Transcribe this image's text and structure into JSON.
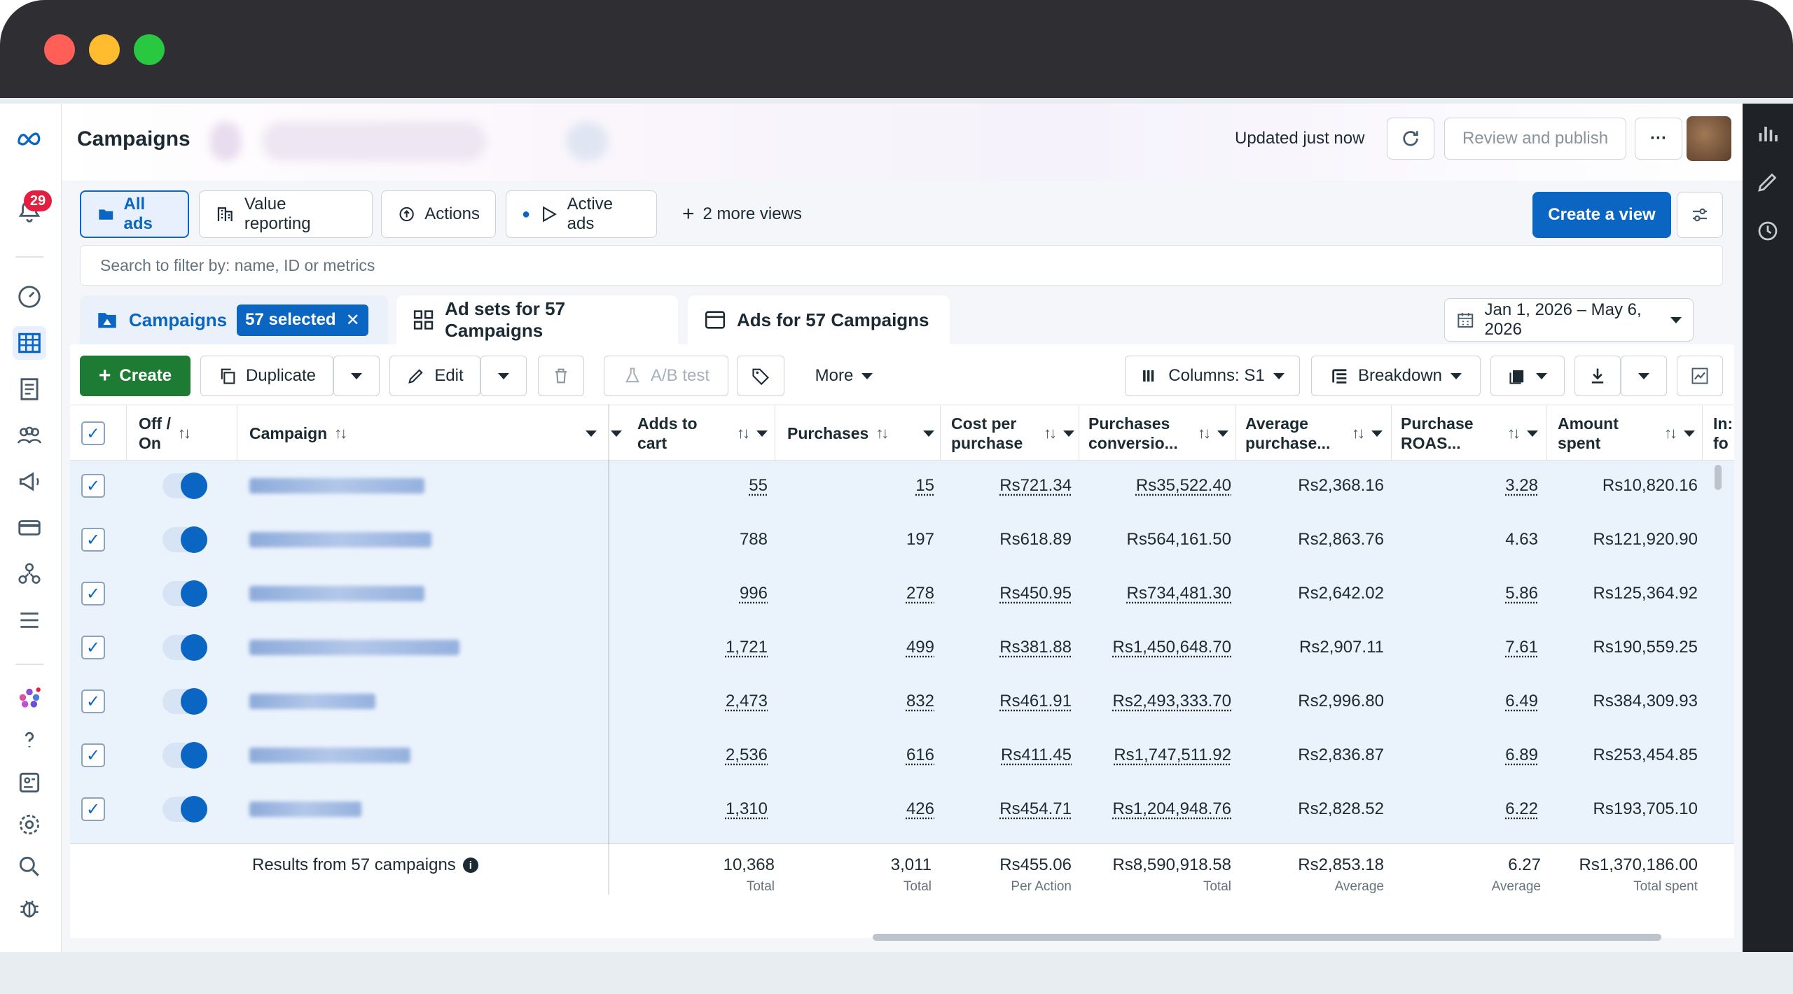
{
  "app": {
    "title": "Campaigns",
    "notification_count": "29",
    "updated_text": "Updated just now",
    "review_publish_label": "Review and publish",
    "more_label": "···"
  },
  "views": {
    "tabs": [
      "All ads",
      "Value reporting",
      "Actions",
      "Active ads"
    ],
    "more_views_label": "2 more views",
    "create_view_label": "Create a view"
  },
  "search": {
    "placeholder": "Search to filter by: name, ID or metrics"
  },
  "levels": {
    "campaigns_label": "Campaigns",
    "selected_label": "57 selected",
    "adsets_label": "Ad sets for 57 Campaigns",
    "ads_label": "Ads for 57 Campaigns",
    "date_range": "Jan 1, 2026 – May 6, 2026"
  },
  "toolbar": {
    "create": "Create",
    "duplicate": "Duplicate",
    "edit": "Edit",
    "ab_test": "A/B test",
    "more": "More",
    "columns": "Columns: S1",
    "breakdown": "Breakdown"
  },
  "table": {
    "headers": {
      "off_on": "Off /\nOn",
      "campaign": "Campaign",
      "adds_to_cart": "Adds to\ncart",
      "purchases": "Purchases",
      "cost_per_purchase": "Cost per\npurchase",
      "purchases_conversion": "Purchases\nconversio...",
      "average_purchase": "Average\npurchase...",
      "purchase_roas": "Purchase\nROAS...",
      "amount_spent": "Amount\nspent",
      "partial": "In:\nfo"
    },
    "rows": [
      {
        "adds_to_cart": "55",
        "purchases": "15",
        "cost_per_purchase": "Rs721.34",
        "conversion_value": "Rs35,522.40",
        "avg_purchase": "Rs2,368.16",
        "roas": "3.28",
        "amount_spent": "Rs10,820.16"
      },
      {
        "adds_to_cart": "788",
        "purchases": "197",
        "cost_per_purchase": "Rs618.89",
        "conversion_value": "Rs564,161.50",
        "avg_purchase": "Rs2,863.76",
        "roas": "4.63",
        "amount_spent": "Rs121,920.90"
      },
      {
        "adds_to_cart": "996",
        "purchases": "278",
        "cost_per_purchase": "Rs450.95",
        "conversion_value": "Rs734,481.30",
        "avg_purchase": "Rs2,642.02",
        "roas": "5.86",
        "amount_spent": "Rs125,364.92"
      },
      {
        "adds_to_cart": "1,721",
        "purchases": "499",
        "cost_per_purchase": "Rs381.88",
        "conversion_value": "Rs1,450,648.70",
        "avg_purchase": "Rs2,907.11",
        "roas": "7.61",
        "amount_spent": "Rs190,559.25"
      },
      {
        "adds_to_cart": "2,473",
        "purchases": "832",
        "cost_per_purchase": "Rs461.91",
        "conversion_value": "Rs2,493,333.70",
        "avg_purchase": "Rs2,996.80",
        "roas": "6.49",
        "amount_spent": "Rs384,309.93"
      },
      {
        "adds_to_cart": "2,536",
        "purchases": "616",
        "cost_per_purchase": "Rs411.45",
        "conversion_value": "Rs1,747,511.92",
        "avg_purchase": "Rs2,836.87",
        "roas": "6.89",
        "amount_spent": "Rs253,454.85"
      },
      {
        "adds_to_cart": "1,310",
        "purchases": "426",
        "cost_per_purchase": "Rs454.71",
        "conversion_value": "Rs1,204,948.76",
        "avg_purchase": "Rs2,828.52",
        "roas": "6.22",
        "amount_spent": "Rs193,705.10"
      }
    ],
    "footer": {
      "results_label": "Results from 57 campaigns",
      "adds_to_cart": "10,368",
      "adds_to_cart_sub": "Total",
      "purchases": "3,011",
      "purchases_sub": "Total",
      "cost_per_purchase": "Rs455.06",
      "cost_per_purchase_sub": "Per Action",
      "conversion_value": "Rs8,590,918.58",
      "conversion_value_sub": "Total",
      "avg_purchase": "Rs2,853.18",
      "avg_purchase_sub": "Average",
      "roas": "6.27",
      "roas_sub": "Average",
      "amount_spent": "Rs1,370,186.00",
      "amount_spent_sub": "Total spent"
    }
  },
  "colors": {
    "accent": "#0a66c2",
    "create_green": "#1e7b34",
    "selected_row": "#eaf2fc"
  }
}
